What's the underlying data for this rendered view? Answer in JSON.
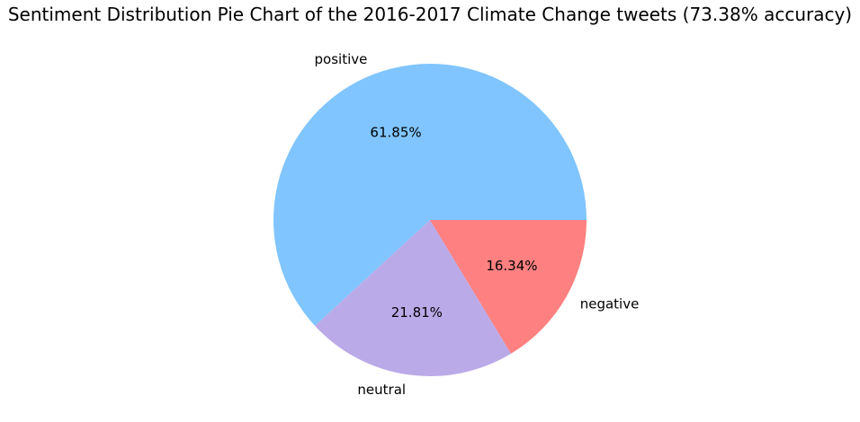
{
  "chart_data": {
    "type": "pie",
    "title": "Sentiment Distribution Pie Chart of the 2016-2017 Climate Change tweets (73.38% accuracy)",
    "start_angle_deg": 0,
    "direction": "counterclockwise",
    "slices": [
      {
        "label": "positive",
        "value": 61.85,
        "pct_label": "61.85%",
        "color": "#80c5ff"
      },
      {
        "label": "neutral",
        "value": 21.81,
        "pct_label": "21.81%",
        "color": "#bbaae8"
      },
      {
        "label": "negative",
        "value": 16.34,
        "pct_label": "16.34%",
        "color": "#ff8080"
      }
    ]
  }
}
